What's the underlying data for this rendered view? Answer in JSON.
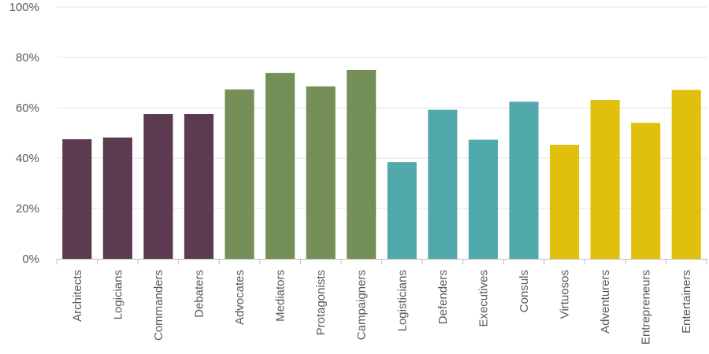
{
  "chart_data": {
    "type": "bar",
    "title": "",
    "xlabel": "",
    "ylabel": "",
    "ylim": [
      0,
      100
    ],
    "yticks": [
      {
        "value": 0,
        "label": "0%"
      },
      {
        "value": 20,
        "label": "20%"
      },
      {
        "value": 40,
        "label": "40%"
      },
      {
        "value": 60,
        "label": "60%"
      },
      {
        "value": 80,
        "label": "80%"
      },
      {
        "value": 100,
        "label": "100%"
      }
    ],
    "grid": true,
    "legend": "none",
    "categories": [
      "Architects",
      "Logicians",
      "Commanders",
      "Debaters",
      "Advocates",
      "Mediators",
      "Protagonists",
      "Campaigners",
      "Logisticians",
      "Defenders",
      "Executives",
      "Consuls",
      "Virtuosos",
      "Adventurers",
      "Entrepreneurs",
      "Entertainers"
    ],
    "values": [
      47.5,
      48.2,
      57.5,
      57.5,
      67.3,
      73.8,
      68.5,
      75.0,
      38.4,
      59.2,
      47.3,
      62.4,
      45.3,
      63.1,
      54.0,
      67.1
    ],
    "colors": [
      "#5c3a50",
      "#5c3a50",
      "#5c3a50",
      "#5c3a50",
      "#748f57",
      "#748f57",
      "#748f57",
      "#748f57",
      "#51a9ab",
      "#51a9ab",
      "#51a9ab",
      "#51a9ab",
      "#e0c00d",
      "#e0c00d",
      "#e0c00d",
      "#e0c00d"
    ]
  }
}
